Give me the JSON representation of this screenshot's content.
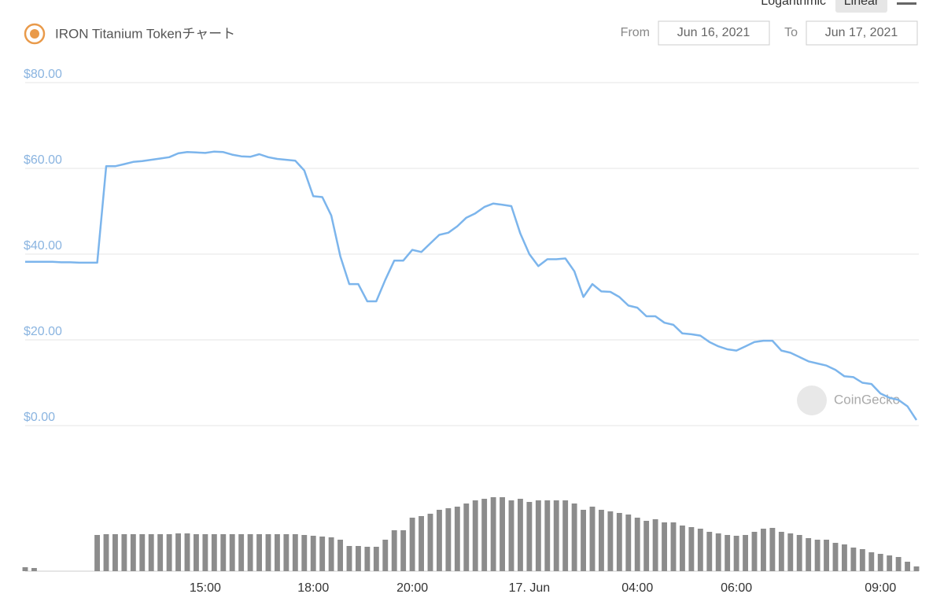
{
  "header": {
    "title": "IRON Titanium Tokenチャート",
    "from_label": "From",
    "from_date": "Jun 16, 2021",
    "to_label": "To",
    "to_date": "Jun 17, 2021",
    "scale_options": [
      "Logarithmic",
      "Linear"
    ]
  },
  "watermark": "CoinGecko",
  "chart_data": {
    "type": "line",
    "color": "#7cb5ec",
    "grid": true,
    "ylim": [
      0,
      80
    ],
    "yticks": [
      {
        "value": 0,
        "label": "$0.00"
      },
      {
        "value": 20,
        "label": "$20.00"
      },
      {
        "value": 40,
        "label": "$40.00"
      },
      {
        "value": 60,
        "label": "$60.00"
      },
      {
        "value": 80,
        "label": "$80.00"
      }
    ],
    "categories": [
      null,
      null,
      null,
      null,
      null,
      null,
      null,
      null,
      null,
      null,
      null,
      null,
      null,
      null,
      null,
      null,
      null,
      null,
      null,
      null,
      "15:00",
      null,
      null,
      null,
      null,
      null,
      null,
      null,
      null,
      null,
      null,
      null,
      "18:00",
      null,
      null,
      null,
      null,
      null,
      null,
      null,
      null,
      null,
      null,
      "20:00",
      null,
      null,
      null,
      null,
      null,
      null,
      null,
      null,
      null,
      null,
      null,
      null,
      "17. Jun",
      null,
      null,
      null,
      null,
      null,
      null,
      null,
      null,
      null,
      null,
      null,
      "04:00",
      null,
      null,
      null,
      null,
      null,
      null,
      null,
      null,
      null,
      null,
      "06:00",
      null,
      null,
      null,
      null,
      null,
      null,
      null,
      null,
      null,
      null,
      null,
      null,
      null,
      null,
      null,
      "09:00",
      null,
      null,
      null,
      null
    ],
    "values": [
      38.2,
      38.2,
      38.2,
      38.2,
      38.1,
      38.1,
      38,
      38,
      38,
      60.5,
      60.5,
      61,
      61.5,
      61.7,
      62,
      62.3,
      62.6,
      63.5,
      63.8,
      63.7,
      63.6,
      63.9,
      63.8,
      63.2,
      62.8,
      62.7,
      63.3,
      62.6,
      62.2,
      62,
      61.8,
      59.5,
      53.5,
      53.3,
      49,
      39.5,
      33,
      33,
      29,
      29,
      34,
      38.5,
      38.5,
      41,
      40.5,
      42.5,
      44.5,
      45,
      46.5,
      48.5,
      49.5,
      51,
      51.8,
      51.5,
      51.2,
      44.8,
      40,
      37.2,
      38.8,
      38.8,
      39,
      36,
      30,
      33,
      31.3,
      31.2,
      30,
      28,
      27.5,
      25.5,
      25.5,
      24,
      23.5,
      21.5,
      21.3,
      21,
      19.5,
      18.5,
      17.8,
      17.5,
      18.5,
      19.5,
      19.8,
      19.8,
      17.5,
      17,
      16,
      15,
      14.5,
      14,
      13,
      11.5,
      11.3,
      10,
      9.7,
      7.5,
      6.5,
      6,
      4.5,
      1.3
    ],
    "volume": {
      "color": "#8c8c8c",
      "values": [
        5,
        4,
        0,
        0,
        0,
        0,
        0,
        0,
        46,
        47,
        47,
        47,
        47,
        47,
        47,
        47,
        47,
        48,
        48,
        47,
        47,
        47,
        47,
        47,
        47,
        47,
        47,
        47,
        47,
        47,
        47,
        46,
        45,
        44,
        43,
        40,
        32,
        32,
        31,
        31,
        40,
        52,
        52,
        68,
        70,
        73,
        78,
        80,
        82,
        86,
        90,
        92,
        94,
        94,
        90,
        92,
        88,
        90,
        90,
        90,
        90,
        86,
        78,
        82,
        78,
        76,
        74,
        72,
        68,
        64,
        66,
        62,
        62,
        58,
        56,
        54,
        50,
        48,
        46,
        45,
        46,
        50,
        54,
        55,
        50,
        48,
        46,
        42,
        40,
        40,
        36,
        34,
        30,
        28,
        24,
        22,
        20,
        18,
        12,
        6
      ]
    }
  }
}
